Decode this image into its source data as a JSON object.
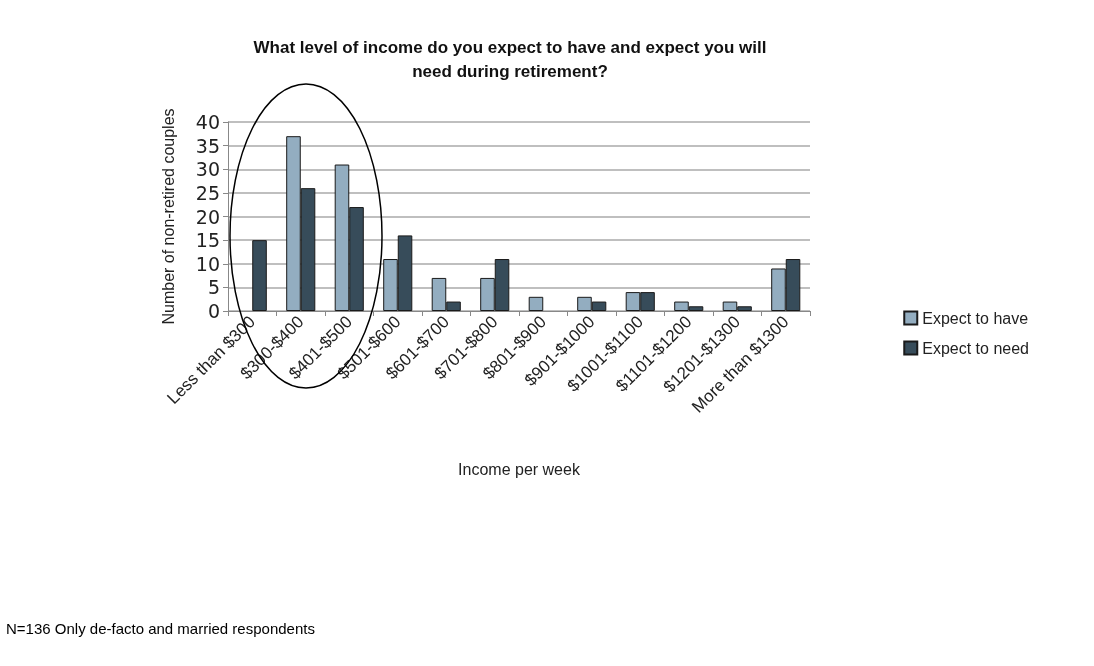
{
  "chart_data": {
    "type": "bar",
    "title": "What level of income do you expect to have and expect you will\nneed during retirement?",
    "xlabel": "Income per week",
    "ylabel": "Number of non-retired couples",
    "categories": [
      "Less than $300",
      "$300-$400",
      "$401-$500",
      "$501-$600",
      "$601-$700",
      "$701-$800",
      "$801-$900",
      "$901-$1000",
      "$1001-$1100",
      "$1101-$1200",
      "$1201-$1300",
      "More than $1300"
    ],
    "series": [
      {
        "name": "Expect to have",
        "color": "#93adc0",
        "values": [
          null,
          37,
          31,
          11,
          7,
          7,
          3,
          3,
          4,
          2,
          2,
          9
        ]
      },
      {
        "name": "Expect to need",
        "color": "#374c5a",
        "values": [
          15,
          26,
          22,
          16,
          2,
          11,
          null,
          2,
          4,
          1,
          1,
          11
        ]
      }
    ],
    "ylim": [
      0,
      40
    ],
    "yticks": [
      0,
      5,
      10,
      15,
      20,
      25,
      30,
      35,
      40
    ],
    "grid": "y",
    "legend": "right",
    "annotations": [
      "N=136 Only de-facto and married respondents"
    ]
  }
}
